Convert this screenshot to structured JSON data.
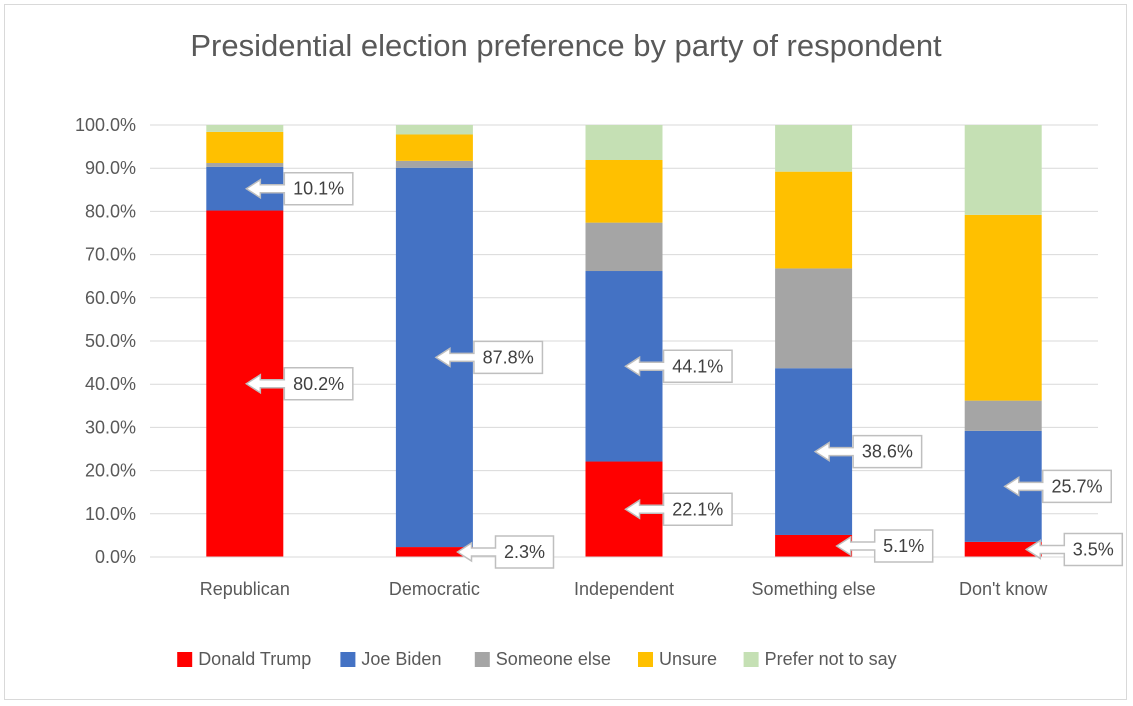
{
  "chart_data": {
    "type": "bar",
    "stacked": true,
    "title": "Presidential election preference by party of respondent",
    "xlabel": "",
    "ylabel": "",
    "ylim": [
      0,
      100
    ],
    "y_ticks": [
      "0.0%",
      "10.0%",
      "20.0%",
      "30.0%",
      "40.0%",
      "50.0%",
      "60.0%",
      "70.0%",
      "80.0%",
      "90.0%",
      "100.0%"
    ],
    "grid": true,
    "legend_position": "bottom",
    "categories": [
      "Republican",
      "Democratic",
      "Independent",
      "Something else",
      "Don't know"
    ],
    "series": [
      {
        "name": "Donald Trump",
        "color": "#ff0000",
        "values": [
          80.2,
          2.3,
          22.1,
          5.1,
          3.5
        ]
      },
      {
        "name": "Joe Biden",
        "color": "#4472c4",
        "values": [
          10.1,
          87.8,
          44.1,
          38.6,
          25.7
        ]
      },
      {
        "name": "Someone else",
        "color": "#a5a5a5",
        "values": [
          0.9,
          1.6,
          11.2,
          23.1,
          7.0
        ]
      },
      {
        "name": "Unsure",
        "color": "#ffc000",
        "values": [
          7.2,
          6.1,
          14.5,
          22.4,
          43.0
        ]
      },
      {
        "name": "Prefer not to say",
        "color": "#c5e0b4",
        "values": [
          1.6,
          2.2,
          8.1,
          10.8,
          20.8
        ]
      }
    ],
    "data_labels": [
      {
        "category": 0,
        "series": 0,
        "text": "80.2%"
      },
      {
        "category": 0,
        "series": 1,
        "text": "10.1%"
      },
      {
        "category": 1,
        "series": 0,
        "text": "2.3%"
      },
      {
        "category": 1,
        "series": 1,
        "text": "87.8%"
      },
      {
        "category": 2,
        "series": 0,
        "text": "22.1%"
      },
      {
        "category": 2,
        "series": 1,
        "text": "44.1%"
      },
      {
        "category": 3,
        "series": 0,
        "text": "5.1%"
      },
      {
        "category": 3,
        "series": 1,
        "text": "38.6%"
      },
      {
        "category": 4,
        "series": 0,
        "text": "3.5%"
      },
      {
        "category": 4,
        "series": 1,
        "text": "25.7%"
      }
    ]
  }
}
